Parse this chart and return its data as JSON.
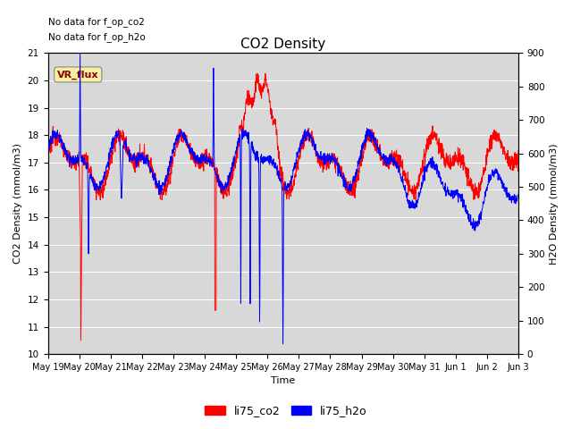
{
  "title": "CO2 Density",
  "xlabel": "Time",
  "ylabel_left": "CO2 Density (mmol/m3)",
  "ylabel_right": "H2O Density (mmol/m3)",
  "ylim_left": [
    10.0,
    21.0
  ],
  "ylim_right": [
    0,
    900
  ],
  "yticks_left": [
    10.0,
    11.0,
    12.0,
    13.0,
    14.0,
    15.0,
    16.0,
    17.0,
    18.0,
    19.0,
    20.0,
    21.0
  ],
  "yticks_right": [
    0,
    100,
    200,
    300,
    400,
    500,
    600,
    700,
    800,
    900
  ],
  "x_tick_labels": [
    "May 19",
    "May 20",
    "May 21",
    "May 22",
    "May 23",
    "May 24",
    "May 25",
    "May 26",
    "May 27",
    "May 28",
    "May 29",
    "May 30",
    "May 31",
    "Jun 1",
    "Jun 2",
    "Jun 3"
  ],
  "note_text1": "No data for f_op_co2",
  "note_text2": "No data for f_op_h2o",
  "vr_flux_label": "VR_flux",
  "legend_entries": [
    "li75_co2",
    "li75_h2o"
  ],
  "color_co2": "#ff0000",
  "color_h2o": "#0000ff",
  "plot_bg_color": "#d8d8d8",
  "grid_color": "#ffffff",
  "title_fontsize": 11,
  "label_fontsize": 8,
  "tick_fontsize": 7.5,
  "linewidth": 0.7,
  "figsize": [
    6.4,
    4.8
  ],
  "dpi": 100
}
